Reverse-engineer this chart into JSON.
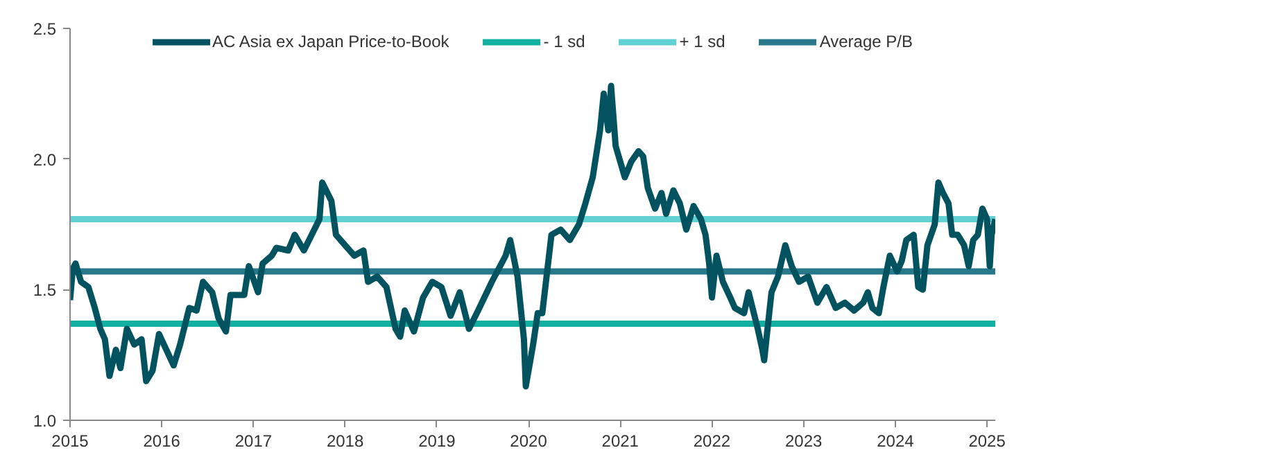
{
  "chart_data": {
    "type": "line",
    "xlim": [
      2015,
      2025.09
    ],
    "xticks": [
      2015,
      2016,
      2017,
      2018,
      2019,
      2020,
      2021,
      2022,
      2023,
      2024,
      2025
    ],
    "ylim": [
      1.0,
      2.5
    ],
    "yticks": [
      {
        "value": 1.0,
        "label": "1.0"
      },
      {
        "value": 1.5,
        "label": "1.5"
      },
      {
        "value": 2.0,
        "label": "2.0"
      },
      {
        "value": 2.5,
        "label": "2.5"
      }
    ],
    "grid": false,
    "legend": "top",
    "line_style": "solid",
    "marker": "none",
    "series": [
      {
        "name": "AC Asia ex Japan Price-to-Book",
        "color": "#02535f",
        "x": [
          2015.0,
          2015.03,
          2015.06,
          2015.12,
          2015.2,
          2015.27,
          2015.33,
          2015.38,
          2015.43,
          2015.5,
          2015.55,
          2015.62,
          2015.7,
          2015.78,
          2015.83,
          2015.9,
          2015.97,
          2016.05,
          2016.13,
          2016.2,
          2016.3,
          2016.38,
          2016.45,
          2016.55,
          2016.62,
          2016.7,
          2016.75,
          2016.9,
          2016.95,
          2017.05,
          2017.1,
          2017.2,
          2017.25,
          2017.38,
          2017.45,
          2017.55,
          2017.65,
          2017.72,
          2017.75,
          2017.85,
          2017.9,
          2018.0,
          2018.1,
          2018.2,
          2018.25,
          2018.35,
          2018.45,
          2018.55,
          2018.6,
          2018.65,
          2018.75,
          2018.85,
          2018.95,
          2019.05,
          2019.15,
          2019.25,
          2019.35,
          2019.45,
          2019.6,
          2019.75,
          2019.8,
          2019.88,
          2019.95,
          2019.97,
          2020.05,
          2020.1,
          2020.15,
          2020.25,
          2020.35,
          2020.45,
          2020.55,
          2020.62,
          2020.7,
          2020.78,
          2020.82,
          2020.87,
          2020.9,
          2020.95,
          2021.05,
          2021.12,
          2021.2,
          2021.25,
          2021.3,
          2021.38,
          2021.45,
          2021.5,
          2021.58,
          2021.65,
          2021.72,
          2021.8,
          2021.88,
          2021.93,
          2021.97,
          2022.0,
          2022.05,
          2022.12,
          2022.2,
          2022.25,
          2022.35,
          2022.4,
          2022.45,
          2022.5,
          2022.55,
          2022.57,
          2022.6,
          2022.65,
          2022.72,
          2022.8,
          2022.87,
          2022.95,
          2023.05,
          2023.15,
          2023.25,
          2023.35,
          2023.45,
          2023.55,
          2023.65,
          2023.7,
          2023.75,
          2023.82,
          2023.87,
          2023.94,
          2024.02,
          2024.07,
          2024.12,
          2024.2,
          2024.25,
          2024.3,
          2024.35,
          2024.43,
          2024.47,
          2024.52,
          2024.58,
          2024.62,
          2024.68,
          2024.75,
          2024.8,
          2024.85,
          2024.9,
          2024.95,
          2025.0,
          2025.03,
          2025.05,
          2025.09
        ],
        "values": [
          1.46,
          1.58,
          1.6,
          1.53,
          1.51,
          1.43,
          1.35,
          1.31,
          1.17,
          1.27,
          1.2,
          1.35,
          1.29,
          1.31,
          1.15,
          1.19,
          1.33,
          1.27,
          1.21,
          1.29,
          1.43,
          1.42,
          1.53,
          1.49,
          1.39,
          1.34,
          1.48,
          1.48,
          1.59,
          1.49,
          1.6,
          1.63,
          1.66,
          1.65,
          1.71,
          1.65,
          1.72,
          1.77,
          1.91,
          1.84,
          1.71,
          1.67,
          1.63,
          1.65,
          1.53,
          1.55,
          1.51,
          1.35,
          1.32,
          1.42,
          1.34,
          1.47,
          1.53,
          1.51,
          1.4,
          1.49,
          1.35,
          1.42,
          1.53,
          1.63,
          1.69,
          1.55,
          1.31,
          1.13,
          1.29,
          1.41,
          1.41,
          1.71,
          1.73,
          1.69,
          1.75,
          1.83,
          1.93,
          2.11,
          2.25,
          2.11,
          2.28,
          2.05,
          1.93,
          1.99,
          2.03,
          2.01,
          1.89,
          1.81,
          1.87,
          1.79,
          1.88,
          1.83,
          1.73,
          1.82,
          1.77,
          1.71,
          1.6,
          1.47,
          1.63,
          1.53,
          1.47,
          1.43,
          1.41,
          1.49,
          1.42,
          1.35,
          1.27,
          1.23,
          1.33,
          1.49,
          1.55,
          1.67,
          1.59,
          1.53,
          1.55,
          1.45,
          1.51,
          1.43,
          1.45,
          1.42,
          1.45,
          1.49,
          1.43,
          1.41,
          1.51,
          1.63,
          1.57,
          1.61,
          1.69,
          1.71,
          1.51,
          1.5,
          1.67,
          1.75,
          1.91,
          1.87,
          1.83,
          1.71,
          1.71,
          1.67,
          1.59,
          1.69,
          1.71,
          1.81,
          1.77,
          1.59,
          1.71,
          1.77
        ]
      },
      {
        "name": "- 1 sd",
        "color": "#12b0a0",
        "x": [
          2015,
          2025.09
        ],
        "values": [
          1.37,
          1.37
        ]
      },
      {
        "name": "+ 1 sd",
        "color": "#62d1d4",
        "x": [
          2015,
          2025.09
        ],
        "values": [
          1.77,
          1.77
        ]
      },
      {
        "name": "Average P/B",
        "color": "#27788a",
        "x": [
          2015,
          2025.09
        ],
        "values": [
          1.57,
          1.57
        ]
      }
    ]
  }
}
